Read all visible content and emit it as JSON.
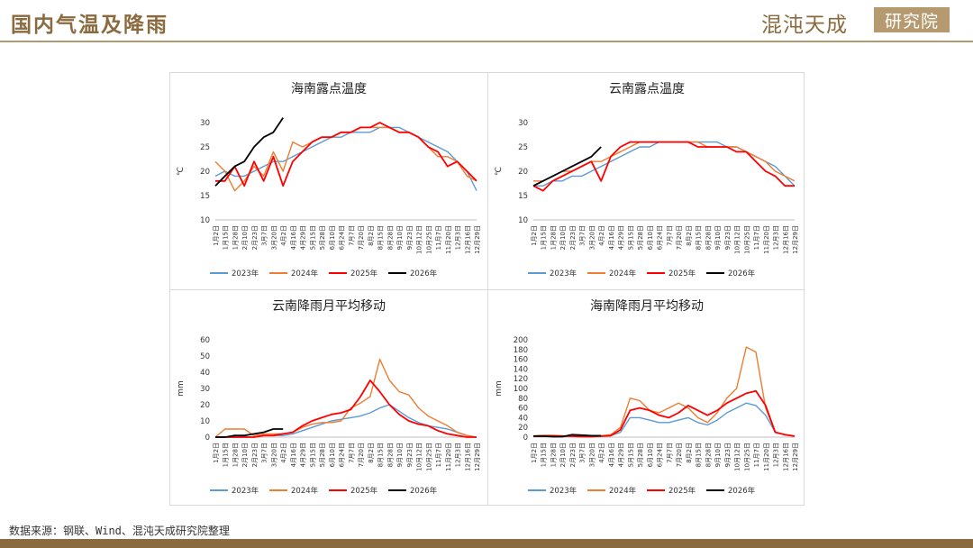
{
  "header": {
    "title": "国内气温及降雨",
    "logo_text": "混沌天成",
    "logo_box": "研究院",
    "accent_color": "#8a6a3e"
  },
  "footer": {
    "source": "数据来源：钢联、Wind、混沌天成研究院整理"
  },
  "series_colors": {
    "2023年": "#5b9bd5",
    "2024年": "#ed7d31",
    "2025年": "#ff0000",
    "2026年": "#000000"
  },
  "date_ticks": [
    "1月2日",
    "1月15日",
    "1月28日",
    "2月10日",
    "2月23日",
    "3月7日",
    "3月20日",
    "4月2日",
    "4月16日",
    "4月29日",
    "5月15日",
    "5月28日",
    "6月10日",
    "6月24日",
    "7月7日",
    "7月20日",
    "8月2日",
    "8月15日",
    "8月28日",
    "9月10日",
    "9月23日",
    "10月12日",
    "10月25日",
    "11月7日",
    "11月20日",
    "12月3日",
    "12月16日",
    "12月29日"
  ],
  "chart_data": [
    {
      "id": "hainan-dew",
      "type": "line",
      "title": "海南露点温度",
      "ylabel": "℃",
      "ylim": [
        10,
        30
      ],
      "yticks": [
        10,
        15,
        20,
        25,
        30
      ],
      "legend": "bottom",
      "grid": false,
      "series": [
        {
          "name": "2023年",
          "values": [
            19,
            20,
            19,
            19,
            20,
            21,
            22,
            22,
            23,
            24,
            25,
            26,
            27,
            27,
            28,
            28,
            28,
            29,
            29,
            29,
            28,
            27,
            26,
            25,
            24,
            22,
            20,
            16
          ]
        },
        {
          "name": "2024年",
          "values": [
            22,
            20,
            16,
            18,
            21,
            19,
            24,
            20,
            26,
            25,
            26,
            27,
            27,
            28,
            28,
            29,
            29,
            29,
            29,
            28,
            28,
            27,
            25,
            23,
            23,
            22,
            19,
            18
          ]
        },
        {
          "name": "2025年",
          "values": [
            18,
            18,
            21,
            17,
            22,
            18,
            23,
            17,
            22,
            24,
            26,
            27,
            27,
            28,
            28,
            29,
            29,
            30,
            29,
            28,
            28,
            27,
            25,
            24,
            21,
            22,
            20,
            18
          ]
        },
        {
          "name": "2026年",
          "values": [
            17,
            19,
            21,
            22,
            25,
            27,
            28,
            31
          ]
        }
      ]
    },
    {
      "id": "yunnan-dew",
      "type": "line",
      "title": "云南露点温度",
      "ylabel": "℃",
      "ylim": [
        10,
        30
      ],
      "yticks": [
        10,
        15,
        20,
        25,
        30
      ],
      "legend": "bottom",
      "grid": false,
      "series": [
        {
          "name": "2023年",
          "values": [
            17,
            17,
            18,
            18,
            19,
            19,
            20,
            21,
            22,
            23,
            24,
            25,
            25,
            26,
            26,
            26,
            26,
            26,
            26,
            26,
            25,
            25,
            24,
            23,
            22,
            21,
            19,
            17
          ]
        },
        {
          "name": "2024年",
          "values": [
            18,
            18,
            19,
            20,
            20,
            21,
            22,
            22,
            23,
            24,
            25,
            26,
            26,
            26,
            26,
            26,
            26,
            26,
            25,
            25,
            25,
            25,
            24,
            23,
            22,
            20,
            19,
            18
          ]
        },
        {
          "name": "2025年",
          "values": [
            17,
            16,
            18,
            19,
            20,
            21,
            22,
            18,
            23,
            25,
            26,
            26,
            26,
            26,
            26,
            26,
            26,
            25,
            25,
            25,
            25,
            24,
            24,
            22,
            20,
            19,
            17,
            17
          ]
        },
        {
          "name": "2026年",
          "values": [
            17,
            18,
            19,
            20,
            21,
            22,
            23,
            25
          ]
        }
      ]
    },
    {
      "id": "yunnan-rain",
      "type": "line",
      "title": "云南降雨月平均移动",
      "ylabel": "mm",
      "ylim": [
        0,
        60
      ],
      "yticks": [
        0,
        10,
        20,
        30,
        40,
        50,
        60
      ],
      "legend": "bottom",
      "grid": false,
      "series": [
        {
          "name": "2023年",
          "values": [
            0,
            0,
            0,
            0,
            0,
            1,
            1,
            1,
            2,
            4,
            6,
            8,
            10,
            11,
            12,
            13,
            15,
            18,
            20,
            16,
            12,
            9,
            7,
            6,
            5,
            3,
            1,
            0
          ]
        },
        {
          "name": "2024年",
          "values": [
            0,
            5,
            5,
            5,
            1,
            2,
            2,
            2,
            3,
            6,
            8,
            9,
            9,
            10,
            18,
            21,
            25,
            48,
            35,
            28,
            26,
            18,
            13,
            10,
            7,
            3,
            1,
            0
          ]
        },
        {
          "name": "2025年",
          "values": [
            0,
            0,
            0,
            0,
            0,
            1,
            1,
            2,
            3,
            7,
            10,
            12,
            14,
            15,
            17,
            25,
            35,
            28,
            20,
            14,
            10,
            8,
            7,
            4,
            2,
            1,
            0,
            0
          ]
        },
        {
          "name": "2026年",
          "values": [
            0,
            0,
            1,
            1,
            2,
            3,
            5,
            5
          ]
        }
      ]
    },
    {
      "id": "hainan-rain",
      "type": "line",
      "title": "海南降雨月平均移动",
      "ylabel": "mm",
      "ylim": [
        0,
        200
      ],
      "yticks": [
        0,
        20,
        40,
        60,
        80,
        100,
        120,
        140,
        160,
        180,
        200
      ],
      "legend": "bottom",
      "grid": false,
      "series": [
        {
          "name": "2023年",
          "values": [
            2,
            2,
            2,
            2,
            1,
            1,
            1,
            2,
            3,
            10,
            40,
            40,
            35,
            30,
            30,
            35,
            40,
            30,
            25,
            35,
            50,
            60,
            70,
            65,
            45,
            10,
            5,
            2
          ]
        },
        {
          "name": "2024年",
          "values": [
            3,
            4,
            4,
            3,
            2,
            2,
            2,
            3,
            5,
            20,
            80,
            75,
            55,
            50,
            60,
            70,
            60,
            40,
            30,
            50,
            80,
            100,
            185,
            175,
            60,
            10,
            5,
            2
          ]
        },
        {
          "name": "2025年",
          "values": [
            2,
            2,
            2,
            2,
            2,
            1,
            1,
            2,
            3,
            15,
            55,
            60,
            55,
            45,
            40,
            50,
            65,
            55,
            45,
            55,
            70,
            80,
            90,
            95,
            65,
            10,
            5,
            2
          ]
        },
        {
          "name": "2026年",
          "values": [
            2,
            2,
            1,
            1,
            5,
            4,
            3,
            3
          ]
        }
      ]
    }
  ]
}
